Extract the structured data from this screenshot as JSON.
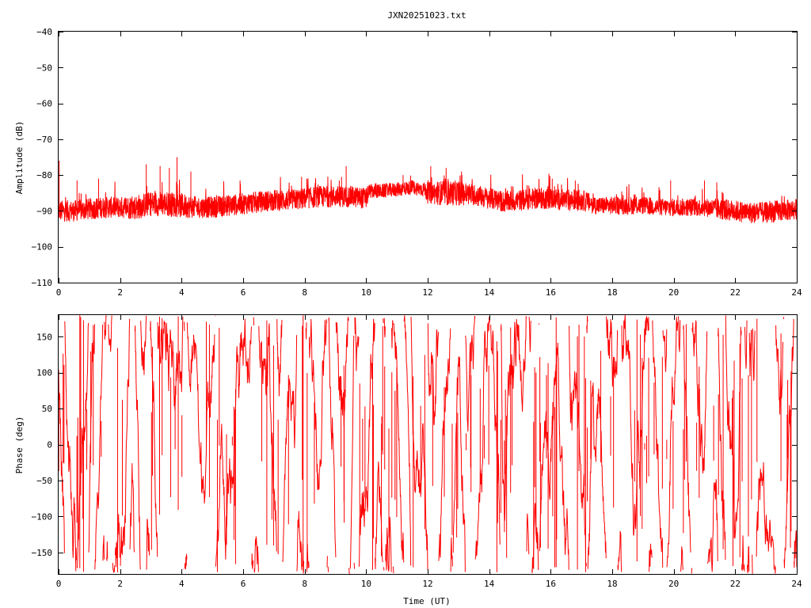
{
  "title": "JXN20251023.txt",
  "chart_data": [
    {
      "type": "line",
      "ylabel": "Amplitude (dB)",
      "xlabel": "",
      "xlim": [
        0,
        24
      ],
      "ylim": [
        -110,
        -40
      ],
      "xticks": [
        0,
        2,
        4,
        6,
        8,
        10,
        12,
        14,
        16,
        18,
        20,
        22,
        24
      ],
      "xtick_labels": [
        "0",
        "2",
        "4",
        "6",
        "8",
        "10",
        "12",
        "14",
        "16",
        "18",
        "20",
        "22",
        "24"
      ],
      "yticks": [
        -110,
        -100,
        -90,
        -80,
        -70,
        -60,
        -50,
        -40
      ],
      "ytick_labels": [
        "−110",
        "−100",
        "−90",
        "−80",
        "−70",
        "−60",
        "−50",
        "−40"
      ],
      "grid": false,
      "color": "#ff0000",
      "series": [
        {
          "x": [
            0,
            0.5,
            1,
            1.5,
            2,
            2.5,
            3,
            3.5,
            4,
            4.5,
            5,
            5.5,
            6,
            6.5,
            7,
            7.5,
            8,
            8.5,
            9,
            9.5,
            10,
            10.1,
            10.5,
            11,
            11.5,
            11.9,
            12,
            12.5,
            13,
            13.5,
            14,
            14.5,
            15,
            15.5,
            16,
            16.5,
            17,
            17.5,
            18,
            18.5,
            19,
            19.5,
            20,
            20.5,
            21,
            21.5,
            22,
            22.5,
            23,
            23.5,
            24
          ],
          "mean": [
            -90,
            -90,
            -89.5,
            -89,
            -89,
            -89,
            -88,
            -88,
            -88.5,
            -89,
            -89,
            -88.5,
            -88,
            -87.5,
            -87,
            -87,
            -86.5,
            -86,
            -86,
            -86,
            -86.5,
            -84.5,
            -84.5,
            -84,
            -83.5,
            -84,
            -85,
            -85,
            -85,
            -85.5,
            -86.5,
            -87.5,
            -87,
            -86.5,
            -86.5,
            -87,
            -87,
            -88.5,
            -88.5,
            -88.5,
            -88.5,
            -89,
            -89,
            -89,
            -89,
            -89.5,
            -90,
            -90.5,
            -90.5,
            -90,
            -89.5
          ],
          "spread": [
            3,
            3,
            3,
            3,
            3,
            3.5,
            3.5,
            3.5,
            3.5,
            3,
            3,
            3,
            3,
            3,
            3,
            3,
            3,
            3,
            3,
            3,
            3,
            2,
            2,
            2,
            2,
            2,
            3,
            3.5,
            3.5,
            3,
            3,
            3,
            3,
            3,
            3,
            3,
            3,
            2.5,
            2.5,
            2.5,
            2.5,
            2.5,
            2.5,
            2.5,
            2.5,
            3,
            3,
            3,
            3,
            3,
            3
          ]
        }
      ],
      "peaks": [
        {
          "x": 0.02,
          "y": -76
        },
        {
          "x": 0.6,
          "y": -81.5
        },
        {
          "x": 1.3,
          "y": -81
        },
        {
          "x": 2.85,
          "y": -77
        },
        {
          "x": 3.3,
          "y": -77.5
        },
        {
          "x": 3.6,
          "y": -78
        },
        {
          "x": 3.85,
          "y": -75
        },
        {
          "x": 4.3,
          "y": -79
        },
        {
          "x": 5.9,
          "y": -81.5
        },
        {
          "x": 7.9,
          "y": -80.5
        },
        {
          "x": 9.2,
          "y": -80.5
        },
        {
          "x": 9.35,
          "y": -77.5
        },
        {
          "x": 11.2,
          "y": -80
        },
        {
          "x": 12.1,
          "y": -77.5
        },
        {
          "x": 12.6,
          "y": -78
        },
        {
          "x": 13.1,
          "y": -79
        },
        {
          "x": 16.05,
          "y": -81
        },
        {
          "x": 16.8,
          "y": -81.5
        },
        {
          "x": 19.9,
          "y": -81.5
        },
        {
          "x": 21,
          "y": -81.5
        },
        {
          "x": 21.4,
          "y": -82
        }
      ]
    },
    {
      "type": "line",
      "ylabel": "Phase (deg)",
      "xlabel": "Time (UT)",
      "xlim": [
        0,
        24
      ],
      "ylim": [
        -180,
        180
      ],
      "xticks": [
        0,
        2,
        4,
        6,
        8,
        10,
        12,
        14,
        16,
        18,
        20,
        22,
        24
      ],
      "xtick_labels": [
        "0",
        "2",
        "4",
        "6",
        "8",
        "10",
        "12",
        "14",
        "16",
        "18",
        "20",
        "22",
        "24"
      ],
      "yticks": [
        -150,
        -100,
        -50,
        0,
        50,
        100,
        150
      ],
      "ytick_labels": [
        "−150",
        "−100",
        "−50",
        "0",
        "50",
        "100",
        "150"
      ],
      "grid": false,
      "color": "#ff0000",
      "series": [
        {
          "range": [
            -180,
            180
          ],
          "wraps_at": [
            -180,
            180
          ]
        }
      ]
    }
  ]
}
